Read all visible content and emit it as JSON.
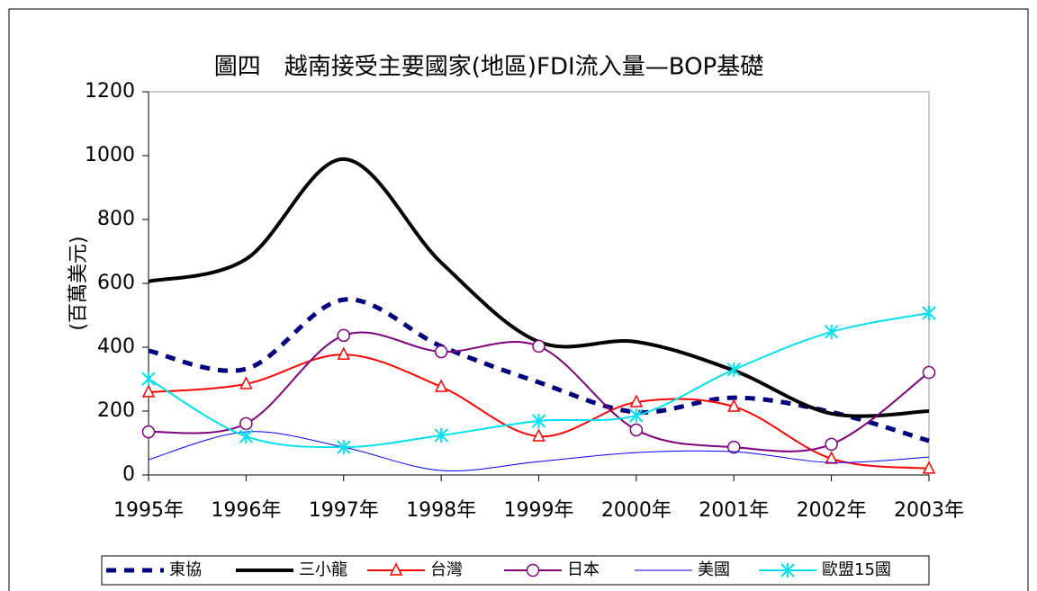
{
  "chart_data": {
    "type": "line",
    "title": "圖四　越南接受主要國家(地區)FDI流入量—BOP基礎",
    "y_label": "(百萬美元)",
    "categories": [
      "1995年",
      "1996年",
      "1997年",
      "1998年",
      "1999年",
      "2000年",
      "2001年",
      "2002年",
      "2003年"
    ],
    "ylim": [
      0,
      1200
    ],
    "yticks": [
      0,
      200,
      400,
      600,
      800,
      1000,
      1200
    ],
    "smooth": true,
    "legend": "bottom",
    "series": [
      {
        "name": "東協",
        "color": "#000080",
        "style": "dashed",
        "width": 5,
        "marker": "none",
        "values": [
          389,
          332,
          549,
          403,
          290,
          197,
          242,
          197,
          107
        ]
      },
      {
        "name": "三小龍",
        "color": "#000000",
        "style": "solid",
        "width": 4,
        "marker": "none",
        "values": [
          606,
          676,
          989,
          665,
          417,
          417,
          327,
          192,
          200
        ]
      },
      {
        "name": "台灣",
        "color": "#ff0000",
        "style": "solid",
        "width": 2,
        "marker": "triangle",
        "values": [
          259,
          285,
          377,
          276,
          121,
          228,
          214,
          51,
          20
        ]
      },
      {
        "name": "日本",
        "color": "#800080",
        "style": "solid",
        "width": 2,
        "marker": "circle",
        "values": [
          135,
          161,
          437,
          386,
          403,
          141,
          87,
          96,
          321
        ]
      },
      {
        "name": "美國",
        "color": "#0000ff",
        "style": "solid",
        "width": 1,
        "marker": "none",
        "values": [
          48,
          135,
          87,
          14,
          42,
          70,
          73,
          39,
          56
        ]
      },
      {
        "name": "歐盟15國",
        "color": "#00e0f0",
        "style": "solid",
        "width": 2,
        "marker": "asterisk",
        "values": [
          301,
          121,
          87,
          124,
          169,
          186,
          330,
          448,
          507
        ]
      }
    ]
  }
}
